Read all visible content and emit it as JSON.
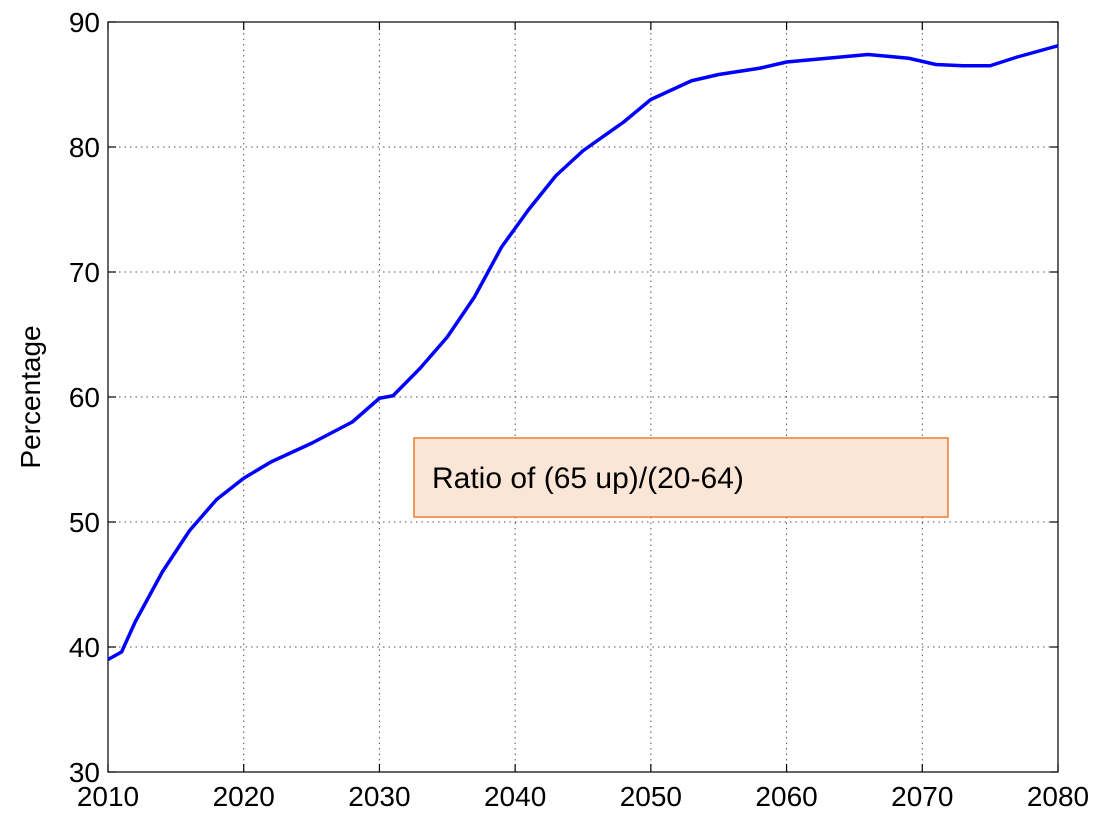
{
  "chart_data": {
    "type": "line",
    "y_label": "Percentage",
    "annotation": "Ratio of (65 up)/(20-64)",
    "x": [
      2010,
      2011,
      2012,
      2014,
      2016,
      2018,
      2020,
      2022,
      2025,
      2028,
      2030,
      2031,
      2033,
      2035,
      2037,
      2039,
      2041,
      2043,
      2045,
      2048,
      2050,
      2053,
      2055,
      2058,
      2060,
      2063,
      2066,
      2069,
      2071,
      2073,
      2075,
      2077,
      2080
    ],
    "series": [
      {
        "color": "#0000ff",
        "values": [
          39,
          39.6,
          42,
          46,
          49.3,
          51.8,
          53.5,
          54.8,
          56.3,
          58,
          59.9,
          60.1,
          62.3,
          64.8,
          68,
          72,
          75,
          77.7,
          79.7,
          82,
          83.8,
          85.3,
          85.8,
          86.3,
          86.8,
          87.1,
          87.4,
          87.1,
          86.6,
          86.5,
          86.5,
          87.2,
          88.1
        ]
      }
    ],
    "xlim": [
      2010,
      2080
    ],
    "xticks": [
      2010,
      2020,
      2030,
      2040,
      2050,
      2060,
      2070,
      2080
    ],
    "ylim": [
      30,
      90
    ],
    "yticks": [
      30,
      40,
      50,
      60,
      70,
      80,
      90
    ],
    "grid": true
  }
}
